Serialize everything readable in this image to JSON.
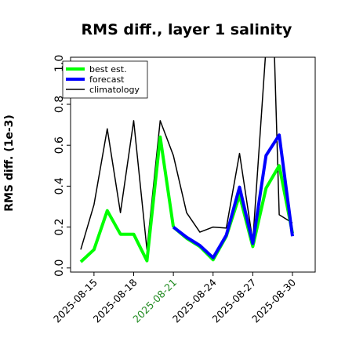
{
  "chart_data": {
    "type": "line",
    "title": "RMS diff., layer 1 salinity",
    "xlabel": "",
    "ylabel": "RMS diff. (1e-3)",
    "ylim": [
      -0.02,
      1.03
    ],
    "yticks": [
      "0.0",
      "0.2",
      "0.4",
      "0.6",
      "0.8",
      "1.0"
    ],
    "xrange_days": [
      0,
      22
    ],
    "xticks": [
      {
        "label": "2025-08-15",
        "day": 6,
        "color": "#000000"
      },
      {
        "label": "2025-08-18",
        "day": 9,
        "color": "#000000"
      },
      {
        "label": "2025-08-21",
        "day": 12,
        "color": "#228b22"
      },
      {
        "label": "2025-08-24",
        "day": 15,
        "color": "#000000"
      },
      {
        "label": "2025-08-27",
        "day": 18,
        "color": "#000000"
      },
      {
        "label": "2025-08-30",
        "day": 21,
        "color": "#000000"
      }
    ],
    "legend_position": "top-left",
    "grid": false,
    "series": [
      {
        "name": "best est.",
        "color": "#00ff00",
        "width": 4,
        "segments": [
          [
            [
              5,
              0.03
            ],
            [
              6,
              0.09
            ],
            [
              7,
              0.28
            ],
            [
              8,
              0.165
            ],
            [
              9,
              0.165
            ],
            [
              10,
              0.035
            ],
            [
              11,
              0.64
            ],
            [
              12,
              0.2
            ]
          ],
          [
            [
              12,
              0.2
            ],
            [
              13,
              0.145
            ],
            [
              14,
              0.105
            ],
            [
              15,
              0.04
            ],
            [
              16,
              0.155
            ],
            [
              17,
              0.355
            ],
            [
              18,
              0.105
            ],
            [
              19,
              0.39
            ],
            [
              20,
              0.5
            ],
            [
              21,
              0.17
            ]
          ]
        ]
      },
      {
        "name": "forecast",
        "color": "#0000ff",
        "width": 4,
        "segments": [
          [
            [
              12,
              0.2
            ],
            [
              13,
              0.15
            ],
            [
              14,
              0.11
            ],
            [
              15,
              0.05
            ],
            [
              16,
              0.16
            ],
            [
              17,
              0.395
            ],
            [
              18,
              0.12
            ],
            [
              19,
              0.55
            ],
            [
              20,
              0.65
            ],
            [
              21,
              0.155
            ]
          ]
        ]
      },
      {
        "name": "climatology",
        "color": "#000000",
        "width": 1.5,
        "segments": [
          [
            [
              5,
              0.09
            ],
            [
              6,
              0.31
            ],
            [
              7,
              0.68
            ],
            [
              8,
              0.27
            ],
            [
              9,
              0.72
            ],
            [
              10,
              0.09
            ],
            [
              11,
              0.72
            ],
            [
              12,
              0.55
            ],
            [
              13,
              0.27
            ],
            [
              14,
              0.175
            ],
            [
              15,
              0.2
            ],
            [
              16,
              0.195
            ],
            [
              17,
              0.56
            ],
            [
              18,
              0.13
            ],
            [
              19,
              1.08
            ],
            [
              19.6,
              1.12
            ],
            [
              20,
              0.26
            ],
            [
              21,
              0.22
            ]
          ]
        ]
      }
    ]
  }
}
